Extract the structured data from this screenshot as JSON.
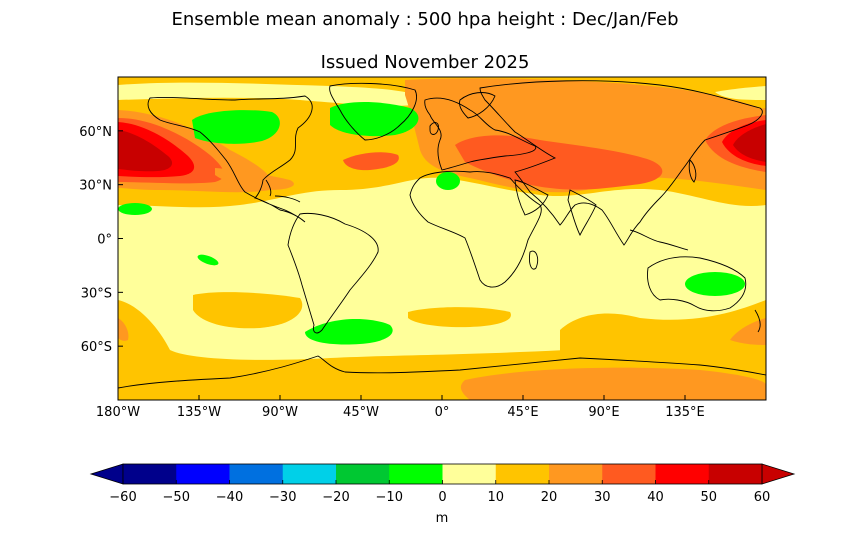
{
  "figure": {
    "title": "Ensemble mean anomaly : 500 hpa height : Dec/Jan/Feb",
    "subtitle": "Issued November 2025"
  },
  "map": {
    "projection": "plate-carree",
    "lon_range": [
      -180,
      180
    ],
    "lat_range": [
      -90,
      90
    ],
    "x_ticks": [
      "180°W",
      "135°W",
      "90°W",
      "45°W",
      "0°",
      "45°E",
      "90°E",
      "135°E"
    ],
    "x_tick_values": [
      -180,
      -135,
      -90,
      -45,
      0,
      45,
      90,
      135
    ],
    "y_ticks": [
      "60°N",
      "30°N",
      "0°",
      "30°S",
      "60°S"
    ],
    "y_tick_values": [
      60,
      30,
      0,
      -30,
      -60
    ],
    "background_level": "0 to 10",
    "features": [
      {
        "name": "north-pacific-high",
        "range": "50 to 60",
        "lon": [
          -180,
          -150
        ],
        "lat": [
          45,
          60
        ]
      },
      {
        "name": "kamchatka-high",
        "range": "50 to 60",
        "lon": [
          150,
          180
        ],
        "lat": [
          45,
          65
        ]
      },
      {
        "name": "canada-low",
        "range": "-10 to 0",
        "lon": [
          -140,
          -90
        ],
        "lat": [
          50,
          65
        ]
      },
      {
        "name": "greenland-low",
        "range": "-10 to 0",
        "lon": [
          -60,
          -25
        ],
        "lat": [
          55,
          75
        ]
      },
      {
        "name": "north-atlantic-high",
        "range": "30 to 40",
        "lon": [
          -55,
          -20
        ],
        "lat": [
          38,
          48
        ]
      },
      {
        "name": "eurasia-high",
        "range": "30 to 40",
        "lon": [
          0,
          140
        ],
        "lat": [
          25,
          75
        ]
      },
      {
        "name": "australia-low",
        "range": "-10 to 0",
        "lon": [
          135,
          155
        ],
        "lat": [
          -35,
          -22
        ]
      },
      {
        "name": "drake-passage-low",
        "range": "-10 to 0",
        "lon": [
          -75,
          -25
        ],
        "lat": [
          -60,
          -45
        ]
      },
      {
        "name": "antarctic-high",
        "range": "20 to 30",
        "lon": [
          15,
          180
        ],
        "lat": [
          -90,
          -70
        ]
      }
    ]
  },
  "colorbar": {
    "label": "m",
    "tick_labels": [
      "−60",
      "−50",
      "−40",
      "−30",
      "−20",
      "−10",
      "0",
      "10",
      "20",
      "30",
      "40",
      "50",
      "60"
    ],
    "levels": [
      -60,
      -50,
      -40,
      -30,
      -20,
      -10,
      0,
      10,
      20,
      30,
      40,
      50,
      60
    ],
    "colors": [
      "#00008b",
      "#0000ff",
      "#0070e0",
      "#00d0e8",
      "#00c832",
      "#00ff00",
      "#ffff9a",
      "#ffc400",
      "#ff9820",
      "#ff5a20",
      "#ff0000",
      "#c80000"
    ],
    "extend": "both"
  },
  "palette": {
    "land_outline": "#000000",
    "frame": "#000000"
  }
}
